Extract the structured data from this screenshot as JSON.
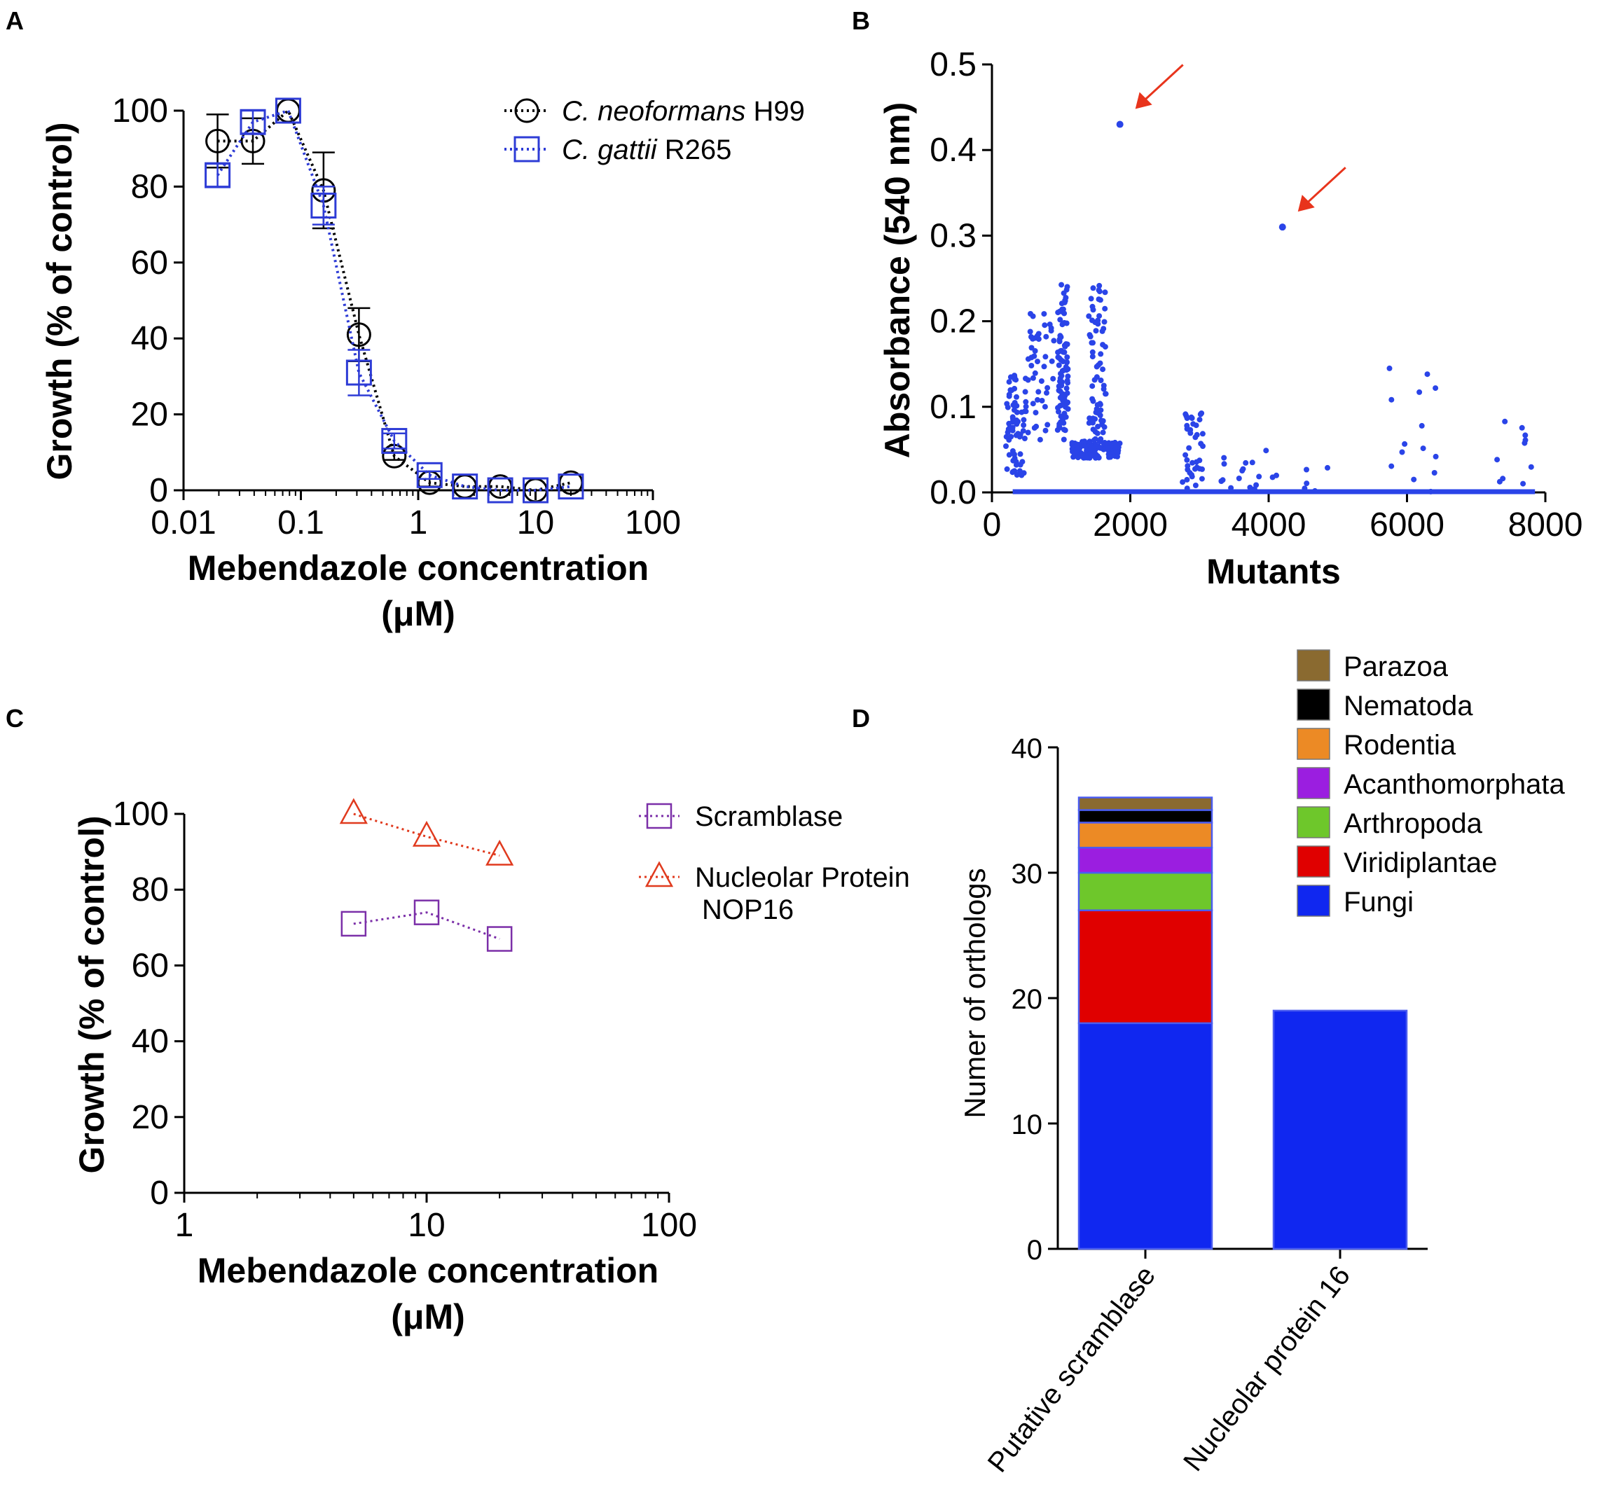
{
  "chart_data": [
    {
      "panel": "A",
      "type": "scatter",
      "xscale": "log",
      "xlabel_line1": "Mebendazole concentration",
      "xlabel_line2": "(μM)",
      "ylabel": "Growth (% of control)",
      "xlim": [
        0.01,
        100
      ],
      "ylim": [
        0,
        100
      ],
      "xticks": [
        0.01,
        0.1,
        1,
        10,
        100
      ],
      "xtick_labels": [
        "0.01",
        "0.1",
        "1",
        "10",
        "100"
      ],
      "yticks": [
        0,
        20,
        40,
        60,
        80,
        100
      ],
      "ytick_labels": [
        "0",
        "20",
        "40",
        "60",
        "80",
        "100"
      ],
      "legend_position": "top-right",
      "series": [
        {
          "name_italic": "C. neoformans",
          "name_rest": " H99",
          "marker": "circle",
          "color": "#000000",
          "x": [
            0.0195,
            0.039,
            0.078,
            0.156,
            0.3125,
            0.625,
            1.25,
            2.5,
            5,
            10,
            20
          ],
          "y": [
            92,
            92,
            100,
            79,
            41,
            9,
            2,
            1,
            1,
            0,
            2
          ],
          "err": [
            7,
            6,
            0,
            10,
            7,
            1,
            1,
            0.5,
            0.5,
            0.5,
            0.5
          ]
        },
        {
          "name_italic": "C. gattii",
          "name_rest": " R265",
          "marker": "square",
          "color": "#2e3cd6",
          "x": [
            0.0195,
            0.039,
            0.078,
            0.156,
            0.3125,
            0.625,
            1.25,
            2.5,
            5,
            10,
            20
          ],
          "y": [
            83,
            97,
            100,
            75,
            31,
            13,
            4,
            1,
            0,
            0,
            1
          ],
          "err": [
            3,
            3,
            0,
            5,
            6,
            2,
            1,
            0.5,
            0.5,
            0.5,
            0.5
          ]
        }
      ]
    },
    {
      "panel": "B",
      "type": "scatter",
      "xlabel": "Mutants",
      "ylabel": "Absorbance (540 nm)",
      "xlim": [
        0,
        8000
      ],
      "ylim": [
        0,
        0.5
      ],
      "xticks": [
        0,
        2000,
        4000,
        6000,
        8000
      ],
      "xtick_labels": [
        "0",
        "2000",
        "4000",
        "6000",
        "8000"
      ],
      "yticks": [
        0,
        0.1,
        0.2,
        0.3,
        0.4,
        0.5
      ],
      "ytick_labels": [
        "0.0",
        "0.1",
        "0.2",
        "0.3",
        "0.4",
        "0.5"
      ],
      "color": "#2a44e8",
      "arrow_color": "#e8341c",
      "highlighted_points": [
        {
          "x": 1850,
          "y": 0.43
        },
        {
          "x": 4200,
          "y": 0.31
        }
      ],
      "clusters": [
        {
          "x_from": 200,
          "x_to": 500,
          "y_from": 0.02,
          "y_to": 0.14,
          "n": 70
        },
        {
          "x_from": 520,
          "x_to": 900,
          "y_from": 0.06,
          "y_to": 0.21,
          "n": 45
        },
        {
          "x_from": 950,
          "x_to": 1100,
          "y_from": 0.06,
          "y_to": 0.25,
          "n": 90
        },
        {
          "x_from": 1100,
          "x_to": 1850,
          "y_from": 0.04,
          "y_to": 0.06,
          "n": 110
        },
        {
          "x_from": 1400,
          "x_to": 1650,
          "y_from": 0.06,
          "y_to": 0.245,
          "n": 70
        },
        {
          "x_from": 2750,
          "x_to": 3050,
          "y_from": 0.0,
          "y_to": 0.1,
          "n": 40
        },
        {
          "x_from": 3300,
          "x_to": 4900,
          "y_from": 0.0,
          "y_to": 0.05,
          "n": 22
        },
        {
          "x_from": 5700,
          "x_to": 6500,
          "y_from": 0.0,
          "y_to": 0.155,
          "n": 14
        },
        {
          "x_from": 7300,
          "x_to": 7800,
          "y_from": 0.0,
          "y_to": 0.095,
          "n": 10
        }
      ],
      "baseline_y": 0
    },
    {
      "panel": "C",
      "type": "line",
      "xscale": "log",
      "xlabel_line1": "Mebendazole concentration",
      "xlabel_line2": "(μM)",
      "ylabel": "Growth (% of  control)",
      "xlim": [
        1,
        100
      ],
      "ylim": [
        0,
        100
      ],
      "xticks": [
        1,
        10,
        100
      ],
      "xtick_labels": [
        "1",
        "10",
        "100"
      ],
      "yticks": [
        0,
        20,
        40,
        60,
        80,
        100
      ],
      "ytick_labels": [
        "0",
        "20",
        "40",
        "60",
        "80",
        "100"
      ],
      "legend_position": "top-right",
      "series": [
        {
          "name_line1": "Scramblase",
          "name_line2": "",
          "marker": "square",
          "color": "#7b2fa8",
          "x": [
            5,
            10,
            20
          ],
          "y": [
            71,
            74,
            67
          ]
        },
        {
          "name_line1": "Nucleolar Protein",
          "name_line2": "NOP16",
          "marker": "triangle",
          "color": "#e03a1e",
          "x": [
            5,
            10,
            20
          ],
          "y": [
            100,
            94,
            89
          ]
        }
      ]
    },
    {
      "panel": "D",
      "type": "bar",
      "stacked": true,
      "ylabel": "Numer of orthologs",
      "ylim": [
        0,
        40
      ],
      "yticks": [
        0,
        10,
        20,
        30,
        40
      ],
      "ytick_labels": [
        "0",
        "10",
        "20",
        "30",
        "40"
      ],
      "categories": [
        "Putative scramblase",
        "Nucleolar protein 16"
      ],
      "legend_position": "top-right",
      "series": [
        {
          "name": "Fungi",
          "color": "#1027f0",
          "values": [
            18,
            19
          ]
        },
        {
          "name": "Viridiplantae",
          "color": "#e00000",
          "values": [
            9,
            0
          ]
        },
        {
          "name": "Arthropoda",
          "color": "#6ec72b",
          "values": [
            3,
            0
          ]
        },
        {
          "name": "Acanthomorphata",
          "color": "#9b1ee0",
          "values": [
            2,
            0
          ]
        },
        {
          "name": "Rodentia",
          "color": "#ec8a25",
          "values": [
            2,
            0
          ]
        },
        {
          "name": "Nematoda",
          "color": "#000000",
          "values": [
            1,
            0
          ]
        },
        {
          "name": "Parazoa",
          "color": "#8a6a30",
          "values": [
            1,
            0
          ]
        }
      ]
    }
  ],
  "panel_labels": [
    "A",
    "B",
    "C",
    "D"
  ]
}
